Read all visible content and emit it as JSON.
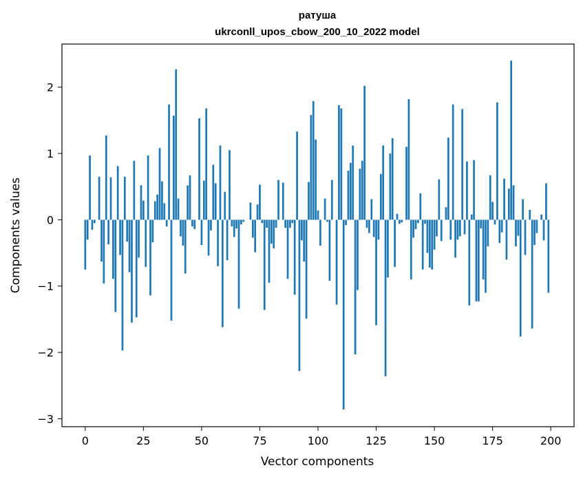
{
  "chart_data": {
    "type": "bar",
    "title_lines": [
      "ратуша",
      "ukrconll_upos_cbow_200_10_2022 model"
    ],
    "xlabel": "Vector components",
    "ylabel": "Components values",
    "xlim": [
      -10,
      210
    ],
    "ylim": [
      -3.12,
      2.65
    ],
    "xticks": [
      0,
      25,
      50,
      75,
      100,
      125,
      150,
      175,
      200
    ],
    "xtick_labels": [
      "0",
      "25",
      "50",
      "75",
      "100",
      "125",
      "150",
      "175",
      "200"
    ],
    "yticks": [
      -3,
      -2,
      -1,
      0,
      1,
      2
    ],
    "ytick_labels": [
      "−3",
      "−2",
      "−1",
      "0",
      "1",
      "2"
    ],
    "bar_color": "#1f77b4",
    "grid": false,
    "values": [
      -0.75,
      -0.3,
      0.97,
      -0.15,
      -0.05,
      0.0,
      0.65,
      -0.63,
      -0.96,
      1.27,
      -0.37,
      0.64,
      -0.89,
      -1.39,
      0.81,
      -0.53,
      -1.97,
      0.65,
      -0.33,
      -0.79,
      -1.55,
      0.89,
      -1.47,
      -0.57,
      0.52,
      0.29,
      -0.71,
      0.97,
      -1.14,
      -0.34,
      0.28,
      0.38,
      1.08,
      0.58,
      0.25,
      -0.1,
      1.74,
      -1.52,
      1.57,
      2.27,
      0.32,
      -0.25,
      -0.39,
      -0.81,
      0.52,
      0.67,
      -0.1,
      -0.14,
      0.0,
      1.53,
      -0.38,
      0.59,
      1.68,
      -0.54,
      -0.16,
      0.83,
      0.55,
      -0.7,
      1.12,
      -1.62,
      0.42,
      -0.61,
      1.05,
      -0.1,
      -0.26,
      -0.13,
      -1.34,
      -0.07,
      -0.03,
      0.0,
      0.0,
      0.26,
      -0.27,
      -0.49,
      0.23,
      0.53,
      -0.05,
      -1.36,
      -0.12,
      -0.95,
      -0.36,
      -0.43,
      -0.12,
      0.6,
      0.0,
      0.56,
      -0.12,
      -0.89,
      -0.12,
      -0.05,
      -1.13,
      1.33,
      -2.28,
      -0.31,
      -0.63,
      -1.49,
      0.57,
      1.58,
      1.79,
      1.21,
      0.14,
      -0.39,
      0.0,
      0.32,
      -0.03,
      -0.92,
      0.6,
      0.0,
      -1.28,
      1.73,
      1.68,
      -2.86,
      -0.08,
      0.74,
      0.86,
      1.12,
      -2.03,
      -1.06,
      0.77,
      0.89,
      2.02,
      -0.12,
      -0.2,
      0.31,
      -0.26,
      -1.59,
      -0.3,
      0.69,
      1.12,
      -2.36,
      -0.87,
      1.0,
      1.23,
      -0.71,
      0.09,
      -0.06,
      -0.04,
      0.0,
      1.1,
      1.82,
      -0.9,
      -0.27,
      -0.14,
      -0.05,
      0.4,
      -0.75,
      -0.06,
      -0.5,
      -0.72,
      -0.75,
      -0.45,
      -0.25,
      0.61,
      -0.32,
      0.0,
      0.19,
      1.24,
      -0.3,
      1.74,
      -0.57,
      -0.3,
      -0.25,
      1.67,
      -0.22,
      0.88,
      -1.29,
      0.08,
      0.9,
      -1.23,
      -1.23,
      -0.13,
      -0.9,
      -1.1,
      -0.4,
      0.67,
      0.27,
      -0.07,
      1.77,
      -0.35,
      -0.19,
      0.62,
      -0.6,
      0.47,
      2.4,
      0.52,
      -0.4,
      -0.24,
      -1.76,
      0.31,
      -0.53,
      0.0,
      0.15,
      -1.64,
      -0.38,
      -0.2,
      0.0,
      0.08,
      -0.31,
      0.55,
      -1.1
    ]
  }
}
